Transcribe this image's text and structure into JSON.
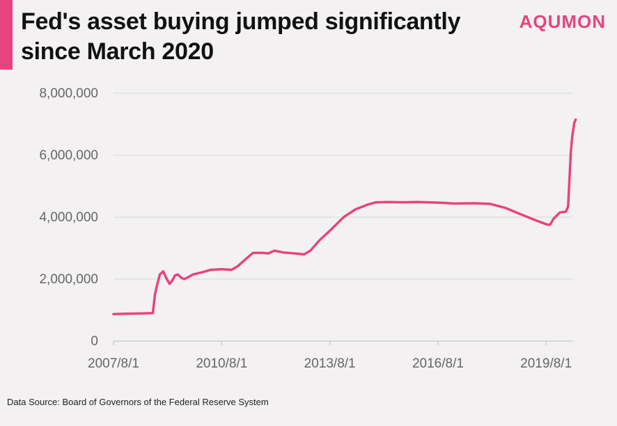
{
  "header": {
    "title": "Fed's asset buying jumped significantly since March 2020",
    "logo": "AQUMON"
  },
  "footer": {
    "source": "Data Source: Board of Governors of the Federal Reserve System"
  },
  "colors": {
    "accent": "#e8437f",
    "line": "#e8437f",
    "grid": "#d9d9d9",
    "axis_text": "#666666"
  },
  "chart_data": {
    "type": "line",
    "title": "Fed's asset buying jumped significantly since March 2020",
    "xlabel": "",
    "ylabel": "",
    "x_tick_labels": [
      "2007/8/1",
      "2010/8/1",
      "2013/8/1",
      "2016/8/1",
      "2019/8/1"
    ],
    "y_tick_labels": [
      "0",
      "2,000,000",
      "4,000,000",
      "6,000,000",
      "8,000,000"
    ],
    "y_ticks": [
      0,
      2000000,
      4000000,
      6000000,
      8000000
    ],
    "ylim": [
      0,
      8000000
    ],
    "xlim": [
      "2007-08-01",
      "2020-05-01"
    ],
    "grid": true,
    "legend": "none",
    "series": [
      {
        "values": [
          [
            "2007-08-01",
            870000
          ],
          [
            "2008-01-01",
            885000
          ],
          [
            "2008-06-01",
            895000
          ],
          [
            "2008-09-03",
            905000
          ],
          [
            "2008-09-24",
            1500000
          ],
          [
            "2008-10-15",
            1800000
          ],
          [
            "2008-11-12",
            2150000
          ],
          [
            "2008-12-17",
            2250000
          ],
          [
            "2009-01-14",
            2050000
          ],
          [
            "2009-02-18",
            1850000
          ],
          [
            "2009-03-18",
            1950000
          ],
          [
            "2009-04-15",
            2120000
          ],
          [
            "2009-05-13",
            2150000
          ],
          [
            "2009-06-17",
            2050000
          ],
          [
            "2009-07-15",
            2000000
          ],
          [
            "2009-08-19",
            2050000
          ],
          [
            "2009-10-14",
            2150000
          ],
          [
            "2010-01-13",
            2220000
          ],
          [
            "2010-04-14",
            2300000
          ],
          [
            "2010-08-04",
            2320000
          ],
          [
            "2010-11-10",
            2300000
          ],
          [
            "2011-01-12",
            2420000
          ],
          [
            "2011-03-16",
            2600000
          ],
          [
            "2011-06-15",
            2850000
          ],
          [
            "2011-09-14",
            2850000
          ],
          [
            "2011-11-16",
            2830000
          ],
          [
            "2012-01-18",
            2920000
          ],
          [
            "2012-04-18",
            2860000
          ],
          [
            "2012-08-15",
            2830000
          ],
          [
            "2012-11-14",
            2800000
          ],
          [
            "2013-01-16",
            2920000
          ],
          [
            "2013-04-17",
            3250000
          ],
          [
            "2013-08-14",
            3600000
          ],
          [
            "2013-12-18",
            4000000
          ],
          [
            "2014-04-16",
            4250000
          ],
          [
            "2014-08-13",
            4400000
          ],
          [
            "2014-11-12",
            4480000
          ],
          [
            "2015-03-18",
            4490000
          ],
          [
            "2015-08-12",
            4480000
          ],
          [
            "2016-01-13",
            4490000
          ],
          [
            "2016-08-10",
            4470000
          ],
          [
            "2017-01-11",
            4440000
          ],
          [
            "2017-08-09",
            4450000
          ],
          [
            "2018-01-10",
            4430000
          ],
          [
            "2018-06-13",
            4300000
          ],
          [
            "2018-11-14",
            4100000
          ],
          [
            "2019-04-17",
            3900000
          ],
          [
            "2019-08-14",
            3760000
          ],
          [
            "2019-09-11",
            3760000
          ],
          [
            "2019-10-16",
            3950000
          ],
          [
            "2019-12-18",
            4150000
          ],
          [
            "2020-02-19",
            4180000
          ],
          [
            "2020-03-11",
            4350000
          ],
          [
            "2020-03-25",
            5250000
          ],
          [
            "2020-04-08",
            6100000
          ],
          [
            "2020-04-22",
            6600000
          ],
          [
            "2020-05-13",
            7050000
          ],
          [
            "2020-05-27",
            7150000
          ]
        ]
      }
    ]
  }
}
